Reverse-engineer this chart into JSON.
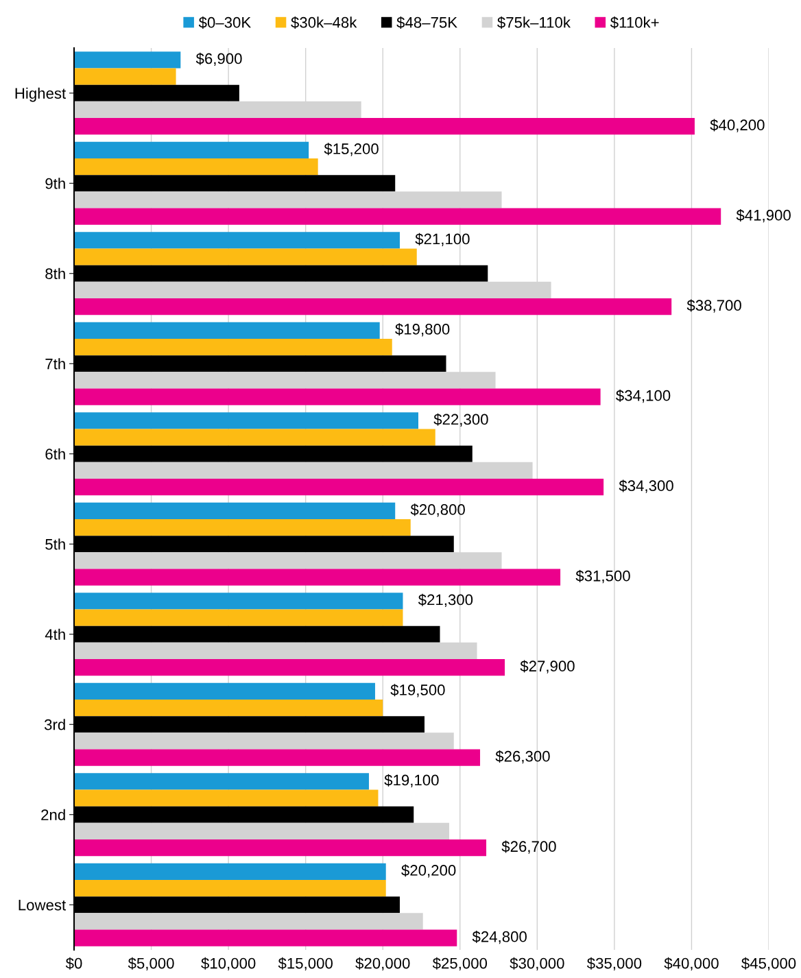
{
  "chart_data": {
    "type": "bar",
    "orientation": "horizontal",
    "categories": [
      "Highest",
      "9th",
      "8th",
      "7th",
      "6th",
      "5th",
      "4th",
      "3rd",
      "2nd",
      "Lowest"
    ],
    "series": [
      {
        "name": "$0–30K",
        "color": "#1a9ad6",
        "values": [
          6900,
          15200,
          21100,
          19800,
          22300,
          20800,
          21300,
          19500,
          19100,
          20200
        ],
        "value_labels": [
          "$6,900",
          "$15,200",
          "$21,100",
          "$19,800",
          "$22,300",
          "$20,800",
          "$21,300",
          "$19,500",
          "$19,100",
          "$20,200"
        ]
      },
      {
        "name": "$30k–48k",
        "color": "#fdbb13",
        "values": [
          6600,
          15800,
          22200,
          20600,
          23400,
          21800,
          21300,
          20000,
          19700,
          20200
        ]
      },
      {
        "name": "$48–75K",
        "color": "#000000",
        "values": [
          10700,
          20800,
          26800,
          24100,
          25800,
          24600,
          23700,
          22700,
          22000,
          21100
        ]
      },
      {
        "name": "$75k–110k",
        "color": "#d3d3d3",
        "values": [
          18600,
          27700,
          30900,
          27300,
          29700,
          27700,
          26100,
          24600,
          24300,
          22600
        ]
      },
      {
        "name": "$110k+",
        "color": "#ec008c",
        "values": [
          40200,
          41900,
          38700,
          34100,
          34300,
          31500,
          27900,
          26300,
          26700,
          24800
        ],
        "value_labels": [
          "$40,200",
          "$41,900",
          "$38,700",
          "$34,100",
          "$34,300",
          "$31,500",
          "$27,900",
          "$26,300",
          "$26,700",
          "$24,800"
        ]
      }
    ],
    "xlim": [
      0,
      45000
    ],
    "xticks": [
      {
        "value": 0,
        "label": "$0"
      },
      {
        "value": 5000,
        "label": "$5,000"
      },
      {
        "value": 10000,
        "label": "$10,000"
      },
      {
        "value": 15000,
        "label": "$15,000"
      },
      {
        "value": 20000,
        "label": "$20,000"
      },
      {
        "value": 25000,
        "label": "$25,000"
      },
      {
        "value": 30000,
        "label": "$30,000"
      },
      {
        "value": 35000,
        "label": "$35,000"
      },
      {
        "value": 40000,
        "label": "$40,000"
      },
      {
        "value": 45000,
        "label": "$45,000"
      }
    ],
    "grid": "x",
    "legend": "top"
  }
}
